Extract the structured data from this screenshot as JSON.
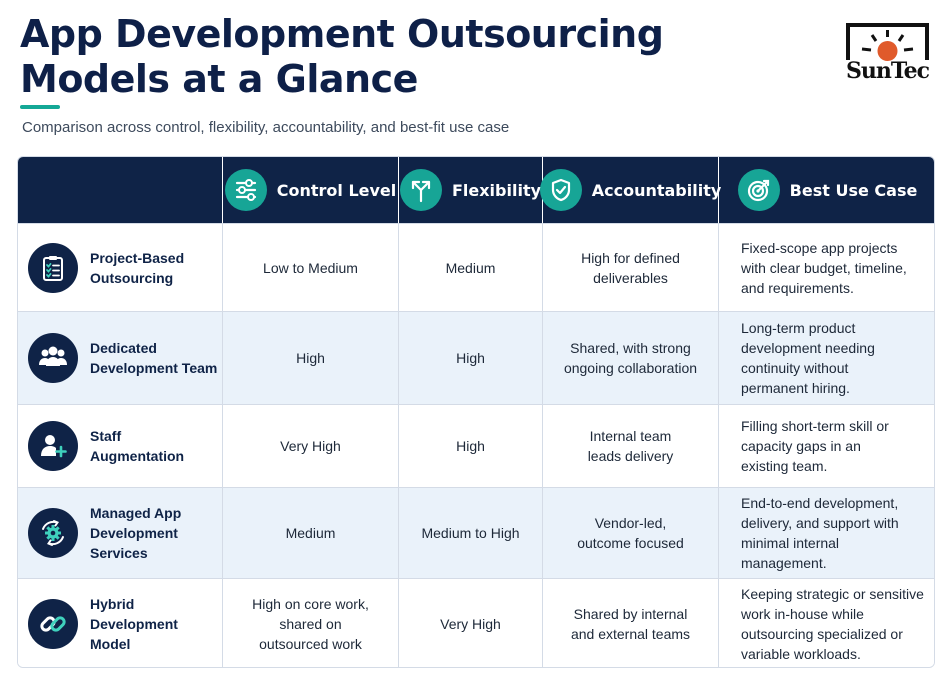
{
  "header": {
    "title_lines": [
      "App Development Outsourcing",
      "Models at a Glance"
    ],
    "subtitle": "Comparison across control, flexibility, accountability, and best-fit use case"
  },
  "logo": {
    "text": "SunTec",
    "colors": {
      "box": "#111111",
      "sun": "#e05a2b"
    }
  },
  "colors": {
    "navy": "#0f2347",
    "teal": "#17a596",
    "alt_row": "#eaf2fa"
  },
  "table": {
    "columns": [
      {
        "label": "",
        "icon": ""
      },
      {
        "label": "Control Level",
        "icon": "sliders-icon"
      },
      {
        "label": "Flexibility",
        "icon": "split-arrows-icon"
      },
      {
        "label": "Accountability",
        "icon": "shield-check-icon"
      },
      {
        "label": "Best Use Case",
        "icon": "target-icon"
      }
    ],
    "rows": [
      {
        "icon": "clipboard-checklist-icon",
        "model": [
          "Project-Based",
          "Outsourcing"
        ],
        "control": [
          "Low to Medium"
        ],
        "flexibility": [
          "Medium"
        ],
        "accountability": [
          "High for defined",
          "deliverables"
        ],
        "best_use": [
          "Fixed-scope app projects",
          "with clear budget, timeline,",
          "and requirements."
        ]
      },
      {
        "icon": "team-icon",
        "model": [
          "Dedicated",
          "Development Team"
        ],
        "control": [
          "High"
        ],
        "flexibility": [
          "High"
        ],
        "accountability": [
          "Shared, with strong",
          "ongoing collaboration"
        ],
        "best_use": [
          "Long-term product",
          "development needing",
          "continuity without",
          "permanent hiring."
        ]
      },
      {
        "icon": "user-add-icon",
        "model": [
          "Staff",
          "Augmentation"
        ],
        "control": [
          "Very High"
        ],
        "flexibility": [
          "High"
        ],
        "accountability": [
          "Internal team",
          "leads delivery"
        ],
        "best_use": [
          "Filling short-term skill or",
          "capacity gaps in an",
          "existing team."
        ]
      },
      {
        "icon": "gear-cycle-icon",
        "model": [
          "Managed App",
          "Development",
          "Services"
        ],
        "control": [
          "Medium"
        ],
        "flexibility": [
          "Medium to High"
        ],
        "accountability": [
          "Vendor-led,",
          "outcome focused"
        ],
        "best_use": [
          "End-to-end development,",
          "delivery, and support with",
          "minimal internal",
          "management."
        ]
      },
      {
        "icon": "chain-link-icon",
        "model": [
          "Hybrid",
          "Development",
          "Model"
        ],
        "control": [
          "High on core work,",
          "shared on",
          "outsourced work"
        ],
        "flexibility": [
          "Very High"
        ],
        "accountability": [
          "Shared by internal",
          "and external teams"
        ],
        "best_use": [
          "Keeping strategic or sensitive",
          "work in-house while",
          "outsourcing specialized or",
          "variable workloads."
        ]
      }
    ]
  }
}
